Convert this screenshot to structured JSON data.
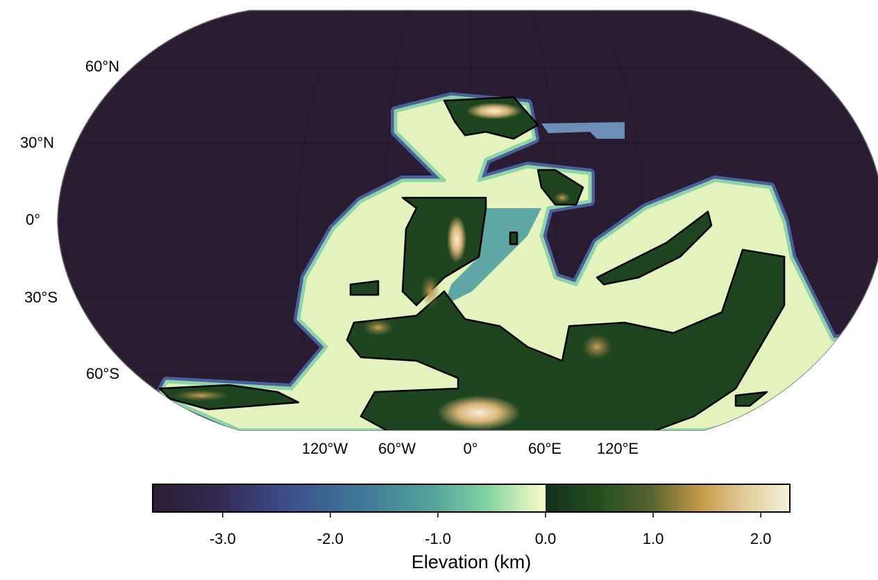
{
  "map": {
    "lat_labels": [
      "60°N",
      "30°N",
      "0°",
      "30°S",
      "60°S"
    ],
    "lon_labels": [
      "120°W",
      "60°W",
      "0°",
      "60°E",
      "120°E"
    ]
  },
  "colorbar": {
    "label": "Elevation (km)",
    "lim": [
      -3.65,
      2.27
    ],
    "ticks": [
      {
        "value": -3,
        "label": "-3.0"
      },
      {
        "value": -2,
        "label": "-2.0"
      },
      {
        "value": -1,
        "label": "-1.0"
      },
      {
        "value": 0,
        "label": "0.0"
      },
      {
        "value": 1,
        "label": "1.0"
      },
      {
        "value": 2,
        "label": "2.0"
      }
    ]
  }
}
